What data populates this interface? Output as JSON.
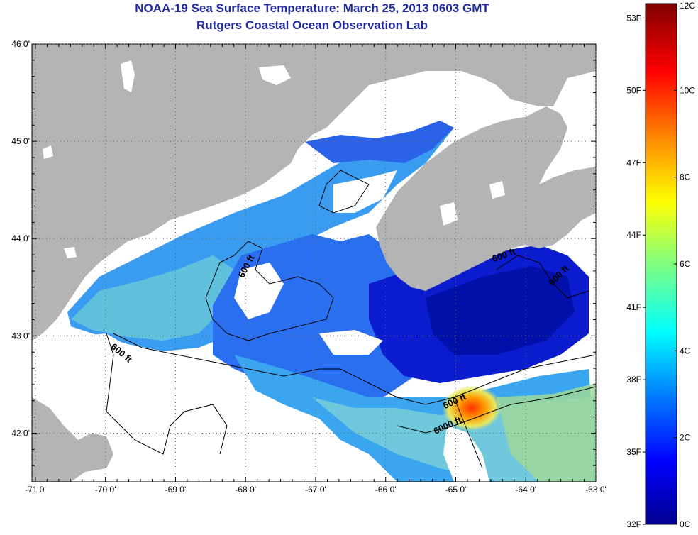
{
  "header": {
    "title": "NOAA-19 Sea Surface Temperature:  March 25, 2013 0603 GMT",
    "subtitle": "Rutgers Coastal Ocean Observation Lab"
  },
  "axes": {
    "lon_ticks": [
      "-71 0'",
      "-70 0'",
      "-69 0'",
      "-68 0'",
      "-67 0'",
      "-66 0'",
      "-65 0'",
      "-64 0'",
      "-63 0'"
    ],
    "lat_ticks": [
      "46 0'",
      "45 0'",
      "44 0'",
      "43 0'",
      "42 0'"
    ]
  },
  "contours": [
    {
      "label": "600 ft",
      "lon": -67.95,
      "lat": 43.7,
      "angle": -62
    },
    {
      "label": "600 ft",
      "lon": -69.8,
      "lat": 42.8,
      "angle": 40
    },
    {
      "label": "600 ft",
      "lon": -64.3,
      "lat": 43.8,
      "angle": -20
    },
    {
      "label": "600 ft",
      "lon": -63.5,
      "lat": 43.6,
      "angle": -45
    },
    {
      "label": "600 ft",
      "lon": -65.0,
      "lat": 42.3,
      "angle": -25
    },
    {
      "label": "6000 ft",
      "lon": -65.1,
      "lat": 42.05,
      "angle": -25
    }
  ],
  "colorbar": {
    "fahrenheit_labels": [
      "53F",
      "50F",
      "47F",
      "44F",
      "41F",
      "38F",
      "35F",
      "32F"
    ],
    "celsius_labels": [
      "12C",
      "10C",
      "8C",
      "6C",
      "4C",
      "2C",
      "0C"
    ],
    "colors": [
      "#00008f",
      "#0000ff",
      "#0080ff",
      "#00ffff",
      "#80ff80",
      "#ffff00",
      "#ff8000",
      "#ff0000",
      "#800000"
    ]
  },
  "colors": {
    "land": "#b4b4b4",
    "no_data": "#ffffff",
    "title": "#1f2a9e",
    "cold": "#0010c8",
    "cool": "#1e5cf0",
    "mid": "#34b4ee",
    "warm": "#8cdc8c",
    "hot": "#ff3000"
  }
}
